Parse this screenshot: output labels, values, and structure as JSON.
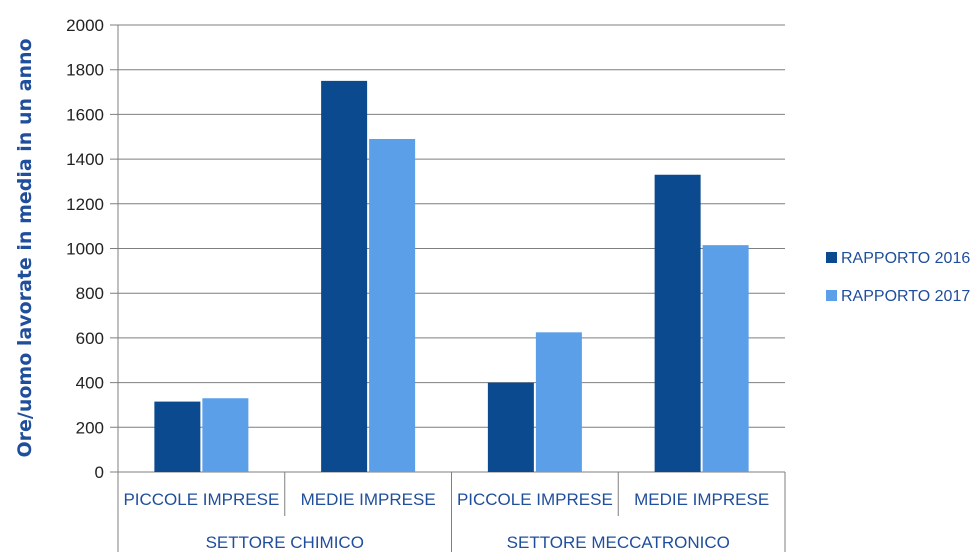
{
  "chart_data": {
    "type": "bar",
    "ylabel": "Ore/uomo lavorate in media in un anno",
    "ylim": [
      0,
      2000
    ],
    "yticks": [
      0,
      200,
      400,
      600,
      800,
      1000,
      1200,
      1400,
      1600,
      1800,
      2000
    ],
    "grid": true,
    "legend_position": "right",
    "groups": [
      {
        "label": "SETTORE CHIMICO",
        "categories": [
          "PICCOLE IMPRESE",
          "MEDIE IMPRESE"
        ]
      },
      {
        "label": "SETTORE MECCATRONICO",
        "categories": [
          "PICCOLE IMPRESE",
          "MEDIE IMPRESE"
        ]
      }
    ],
    "categories": [
      "PICCOLE IMPRESE",
      "MEDIE IMPRESE",
      "PICCOLE IMPRESE",
      "MEDIE IMPRESE"
    ],
    "series": [
      {
        "name": "RAPPORTO 2016",
        "color": "#0b4a8f",
        "values": [
          315,
          1750,
          400,
          1330
        ]
      },
      {
        "name": "RAPPORTO 2017",
        "color": "#5a9fe8",
        "values": [
          330,
          1490,
          625,
          1015
        ]
      }
    ]
  }
}
